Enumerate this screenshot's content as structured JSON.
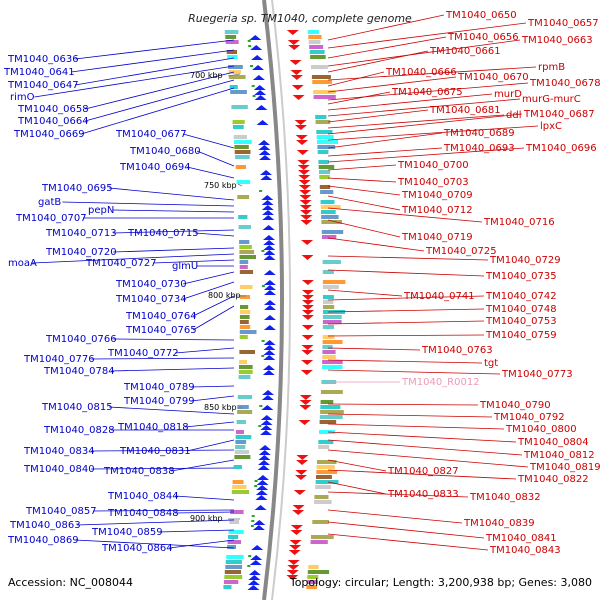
{
  "title": "Ruegeria sp. TM1040, complete genome",
  "footer": {
    "accession": "Accession: NC_008044",
    "topology": "Topology: circular; Length: 3,200,938 bp; Genes: 3,080"
  },
  "colors": {
    "left_label": "#0000cc",
    "right_label": "#cc0000",
    "rna_label": "#ee99bb",
    "backbone": "#888888"
  },
  "ticks": [
    "700 kbp",
    "750 kbp",
    "800 kbp",
    "850 kbp",
    "900 kbp"
  ],
  "left_labels": [
    "TM1040_0636",
    "TM1040_0641",
    "TM1040_0647",
    "rimO",
    "TM1040_0658",
    "TM1040_0664",
    "TM1040_0669",
    "TM1040_0677",
    "TM1040_0680",
    "TM1040_0694",
    "TM1040_0695",
    "gatB",
    "pepN",
    "TM1040_0707",
    "TM1040_0713",
    "TM1040_0715",
    "TM1040_0720",
    "moaA",
    "TM1040_0727",
    "glmU",
    "TM1040_0730",
    "TM1040_0734",
    "TM1040_0764",
    "TM1040_0765",
    "TM1040_0766",
    "TM1040_0772",
    "TM1040_0776",
    "TM1040_0784",
    "TM1040_0789",
    "TM1040_0799",
    "TM1040_0815",
    "TM1040_0818",
    "TM1040_0828",
    "TM1040_0831",
    "TM1040_0834",
    "TM1040_0838",
    "TM1040_0840",
    "TM1040_0844",
    "TM1040_0848",
    "TM1040_0857",
    "TM1040_0859",
    "TM1040_0863",
    "TM1040_0864",
    "TM1040_0869"
  ],
  "right_labels": [
    "TM1040_0650",
    "TM1040_0657",
    "TM1040_0656",
    "TM1040_0663",
    "TM1040_0661",
    "rpmB",
    "TM1040_0666",
    "TM1040_0670",
    "TM1040_0678",
    "TM1040_0675",
    "murD",
    "murG-murC",
    "TM1040_0681",
    "ddl",
    "TM1040_0687",
    "lpxC",
    "TM1040_0689",
    "TM1040_0693",
    "TM1040_0696",
    "TM1040_0700",
    "TM1040_0703",
    "TM1040_0709",
    "TM1040_0712",
    "TM1040_0716",
    "TM1040_0719",
    "TM1040_0725",
    "TM1040_0729",
    "TM1040_0735",
    "TM1040_0741",
    "TM1040_0742",
    "TM1040_0748",
    "TM1040_0753",
    "TM1040_0759",
    "TM1040_0763",
    "tgt",
    "TM1040_0773",
    "TM1040_R0012",
    "TM1040_0790",
    "TM1040_0792",
    "TM1040_0800",
    "TM1040_0804",
    "TM1040_0812",
    "TM1040_0819",
    "TM1040_0827",
    "TM1040_0822",
    "TM1040_0833",
    "TM1040_0832",
    "TM1040_0839",
    "TM1040_0841",
    "TM1040_0843"
  ]
}
